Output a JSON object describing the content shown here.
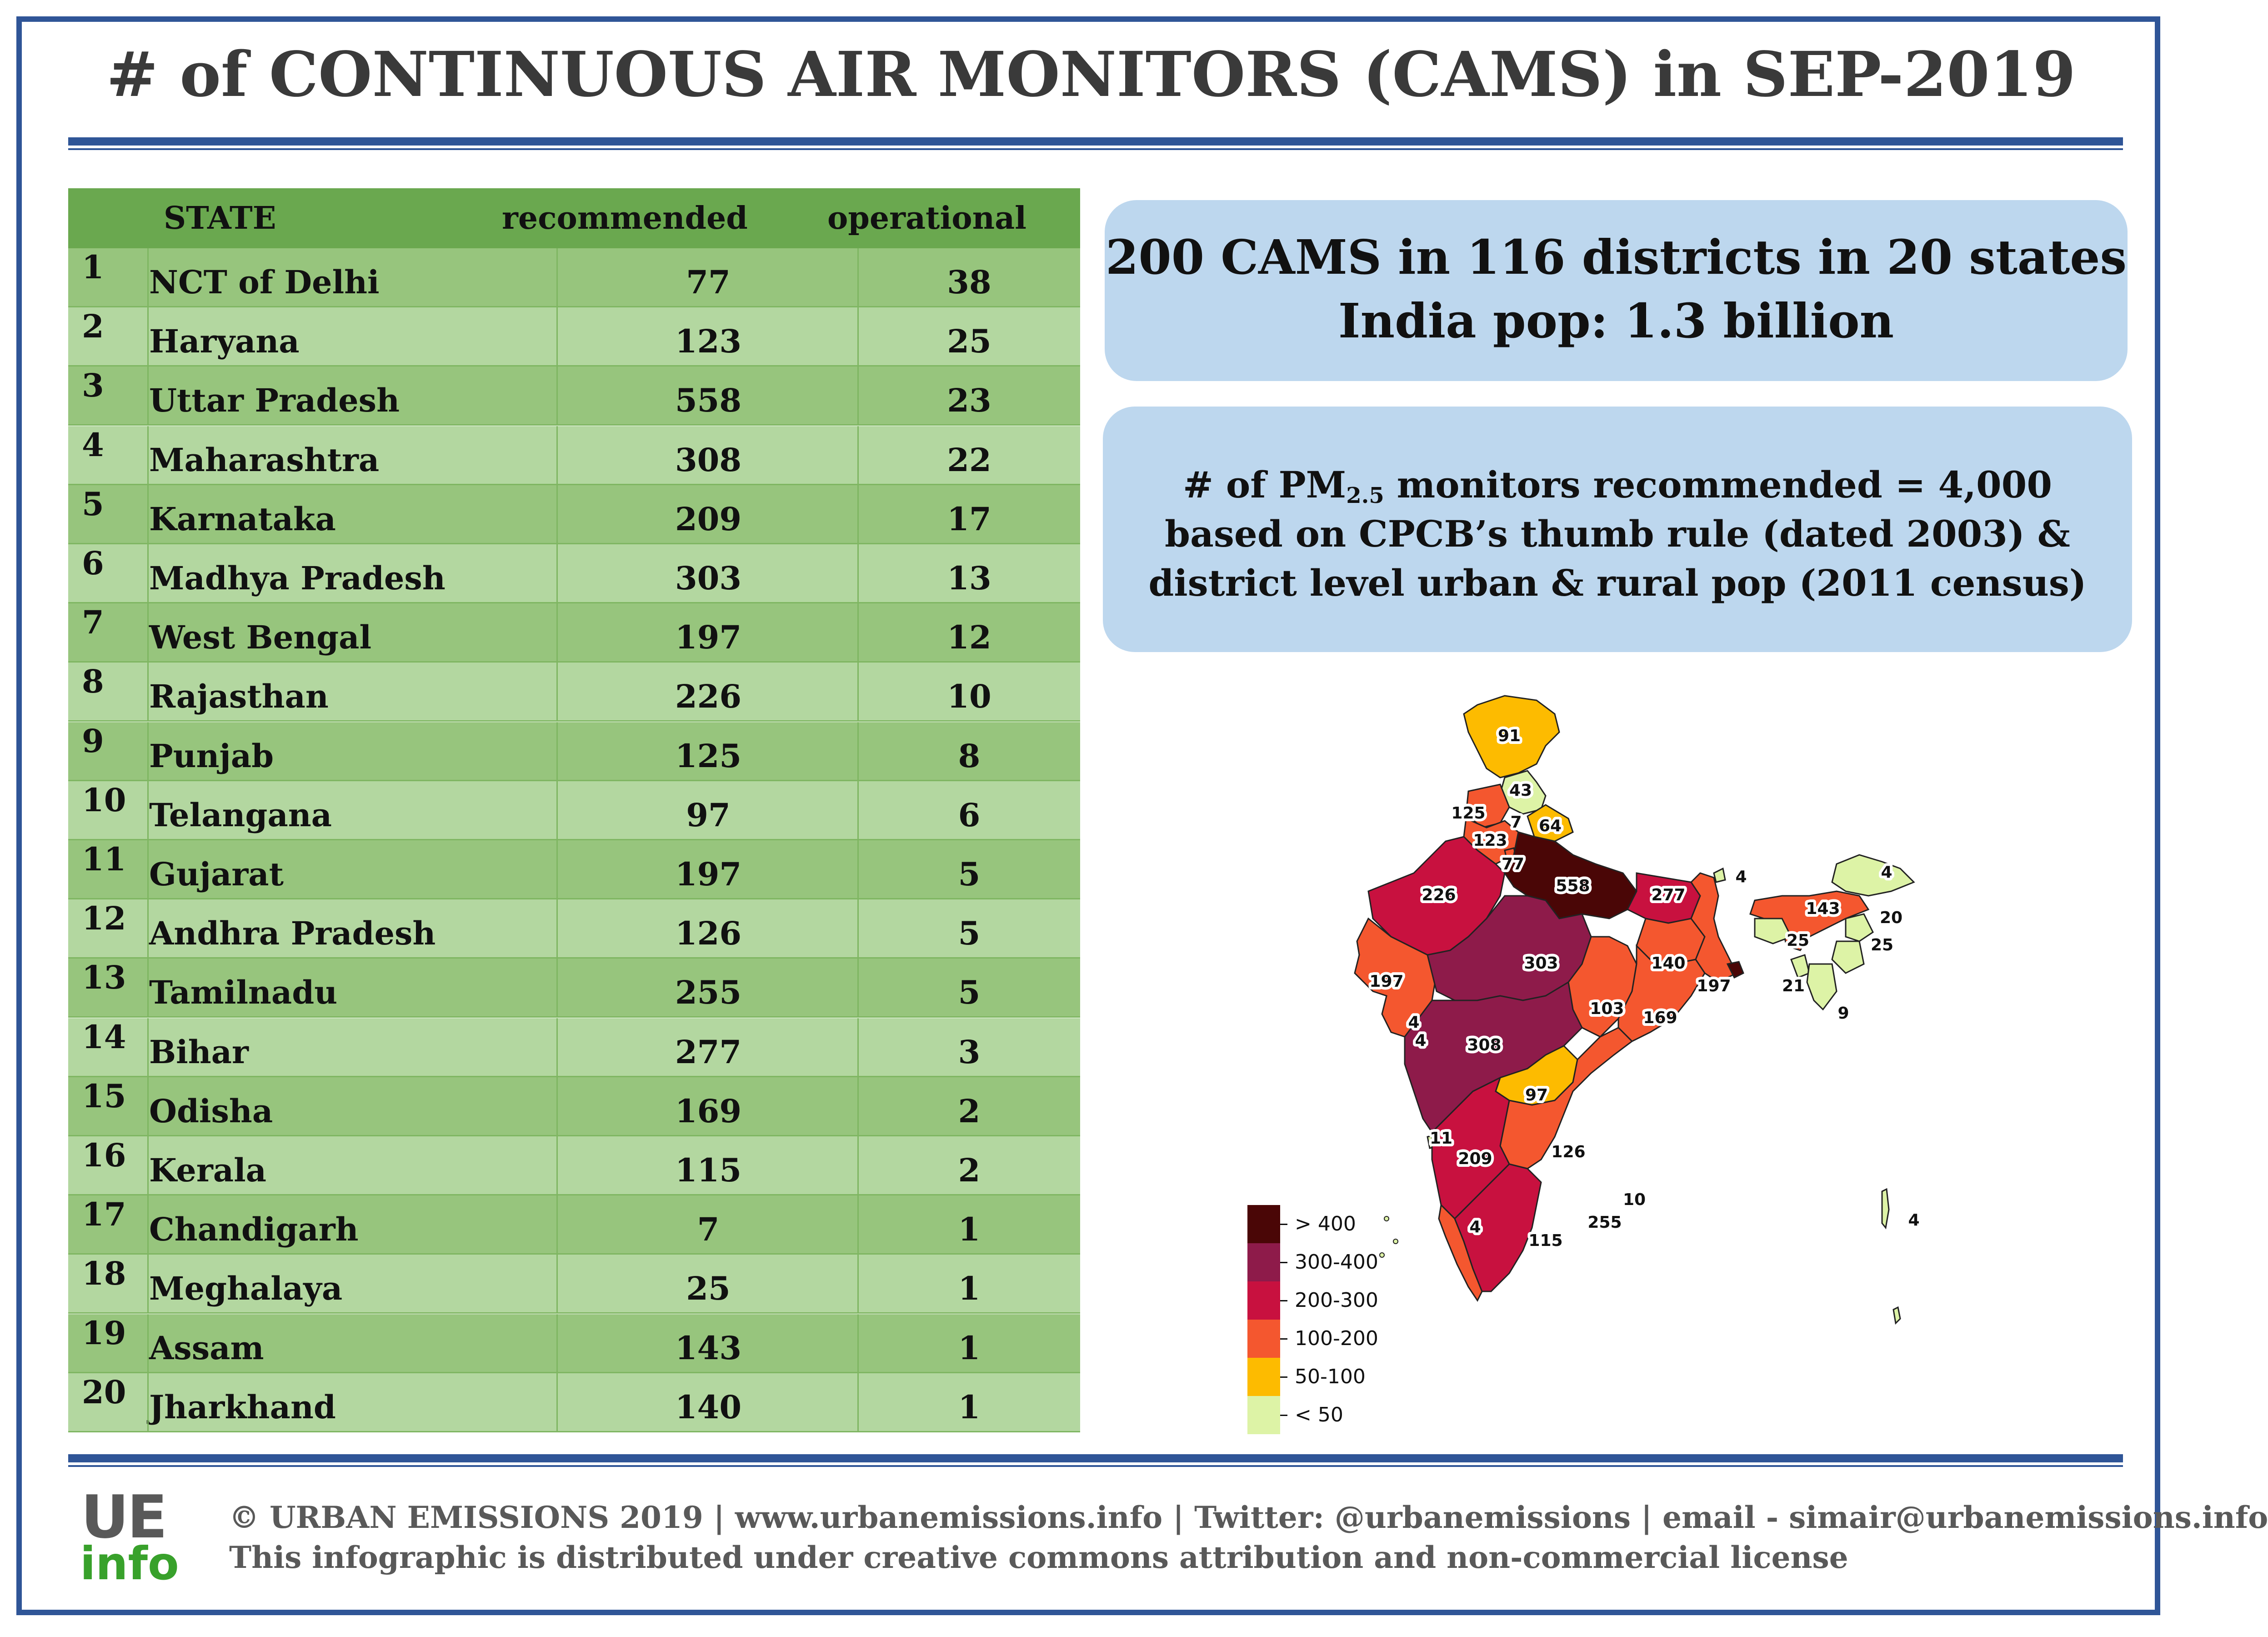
{
  "title": "# of CONTINUOUS AIR MONITORS (CAMS) in SEP-2019",
  "table": {
    "headers": {
      "state": "STATE",
      "recommended": "recommended",
      "operational": "operational"
    },
    "rows": [
      {
        "rank": "1",
        "state": "NCT of Delhi",
        "recommended": "77",
        "operational": "38"
      },
      {
        "rank": "2",
        "state": "Haryana",
        "recommended": "123",
        "operational": "25"
      },
      {
        "rank": "3",
        "state": "Uttar Pradesh",
        "recommended": "558",
        "operational": "23"
      },
      {
        "rank": "4",
        "state": "Maharashtra",
        "recommended": "308",
        "operational": "22"
      },
      {
        "rank": "5",
        "state": "Karnataka",
        "recommended": "209",
        "operational": "17"
      },
      {
        "rank": "6",
        "state": "Madhya Pradesh",
        "recommended": "303",
        "operational": "13"
      },
      {
        "rank": "7",
        "state": "West Bengal",
        "recommended": "197",
        "operational": "12"
      },
      {
        "rank": "8",
        "state": "Rajasthan",
        "recommended": "226",
        "operational": "10"
      },
      {
        "rank": "9",
        "state": "Punjab",
        "recommended": "125",
        "operational": "8"
      },
      {
        "rank": "10",
        "state": "Telangana",
        "recommended": "97",
        "operational": "6"
      },
      {
        "rank": "11",
        "state": "Gujarat",
        "recommended": "197",
        "operational": "5"
      },
      {
        "rank": "12",
        "state": "Andhra Pradesh",
        "recommended": "126",
        "operational": "5"
      },
      {
        "rank": "13",
        "state": "Tamilnadu",
        "recommended": "255",
        "operational": "5"
      },
      {
        "rank": "14",
        "state": "Bihar",
        "recommended": "277",
        "operational": "3"
      },
      {
        "rank": "15",
        "state": "Odisha",
        "recommended": "169",
        "operational": "2"
      },
      {
        "rank": "16",
        "state": "Kerala",
        "recommended": "115",
        "operational": "2"
      },
      {
        "rank": "17",
        "state": "Chandigarh",
        "recommended": "7",
        "operational": "1"
      },
      {
        "rank": "18",
        "state": "Meghalaya",
        "recommended": "25",
        "operational": "1"
      },
      {
        "rank": "19",
        "state": "Assam",
        "recommended": "143",
        "operational": "1"
      },
      {
        "rank": "20",
        "state": "Jharkhand",
        "recommended": "140",
        "operational": "1"
      }
    ]
  },
  "info_box_1": {
    "line1": "200 CAMS in 116 districts in 20 states",
    "line2": "India pop: 1.3 billion"
  },
  "info_box_2": {
    "line1_prefix": "# of PM",
    "line1_sub": "2.5",
    "line1_suffix": " monitors recommended = 4,000",
    "line2": "based on CPCB’s thumb rule (dated 2003) &",
    "line3": "district level urban & rural pop (2011 census)"
  },
  "map_labels": {
    "jk": "91",
    "hp": "43",
    "pb": "125",
    "ch": "7",
    "uk": "64",
    "hr": "123",
    "dl": "77",
    "rj": "226",
    "up": "558",
    "br": "277",
    "sk": "4",
    "ar": "4",
    "as": "143",
    "ml": "25",
    "nl": "20",
    "mn": "25",
    "tr": "21",
    "mz": "9",
    "gj": "197",
    "mp": "303",
    "jh": "140",
    "wb": "197",
    "cg": "103",
    "od": "169",
    "dd": "4",
    "dnh": "4",
    "mh": "308",
    "tg": "97",
    "ga": "11",
    "ka": "209",
    "ap": "126",
    "py": "10",
    "tn": "255",
    "kl": "115",
    "ld": "4",
    "an": "4"
  },
  "legend": {
    "items": [
      {
        "label": "> 400",
        "color": "#4a0606"
      },
      {
        "label": "300-400",
        "color": "#8e1b4a"
      },
      {
        "label": "200-300",
        "color": "#c8113f"
      },
      {
        "label": "100-200",
        "color": "#f4572f"
      },
      {
        "label": "50-100",
        "color": "#fdbb00"
      },
      {
        "label": "< 50",
        "color": "#ddf3a6"
      }
    ]
  },
  "footer": {
    "logo_top": "UE",
    "logo_bottom": "info",
    "line1": "© URBAN EMISSIONS 2019 | www.urbanemissions.info | Twitter: @urbanemissions | email - simair@urbanemissions.info",
    "line2": "This infographic is distributed under creative commons attribution and non-commercial license"
  },
  "colors": {
    "frame": "#2f5597",
    "table_header": "#6aa84f",
    "row_dark": "#97c57d",
    "row_light": "#b3d7a0",
    "info_box": "#bdd7ee",
    "logo_green": "#38a12b",
    "footer_text": "#595959"
  }
}
